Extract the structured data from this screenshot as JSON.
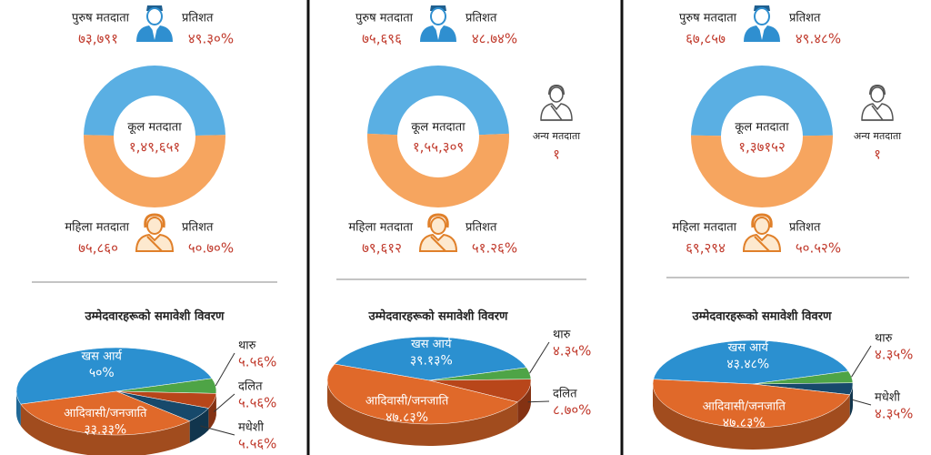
{
  "chart_data": [
    {
      "type": "donut",
      "center_label": "कूल मतदाता",
      "total": 149651,
      "total_label": "१,४९,६५१",
      "percent_heading": "प्रतिशत",
      "categories": [
        "पुरुष मतदाता",
        "महिला मतदाता"
      ],
      "values": [
        49.3,
        50.7
      ],
      "value_labels": [
        "४९.३०%",
        "५०.७०%"
      ],
      "counts": [
        73791,
        75860
      ],
      "count_labels": [
        "७३,७९१",
        "७५,८६०"
      ],
      "colors": [
        "#5aafe3",
        "#f6a55f"
      ]
    },
    {
      "type": "pie3d",
      "title": "उम्मेदवारहरूको समावेशी विवरण",
      "categories": [
        "खस आर्य",
        "थारु",
        "दलित",
        "मधेशी",
        "आदिवासी/जनजाति"
      ],
      "values": [
        50,
        5.56,
        5.56,
        5.56,
        33.33
      ],
      "value_labels": [
        "५०%",
        "५.५६%",
        "५.५६%",
        "५.५६%",
        "३३.३३%"
      ],
      "colors": [
        "#2b90d0",
        "#4ea446",
        "#b8461a",
        "#17496b",
        "#e0692a"
      ]
    },
    {
      "type": "donut",
      "center_label": "कूल मतदाता",
      "total": 155309,
      "total_label": "१,५५,३०९",
      "percent_heading": "प्रतिशत",
      "categories": [
        "पुरुष मतदाता",
        "महिला मतदाता"
      ],
      "values": [
        48.74,
        51.26
      ],
      "value_labels": [
        "४८.७४%",
        "५१.२६%"
      ],
      "counts": [
        75696,
        79612
      ],
      "count_labels": [
        "७५,६९६",
        "७९,६१२"
      ],
      "colors": [
        "#5aafe3",
        "#f6a55f"
      ],
      "other_label": "अन्य मतदाता",
      "other_count": 1,
      "other_count_label": "१"
    },
    {
      "type": "pie3d",
      "title": "उम्मेदवारहरूको समावेशी विवरण",
      "categories": [
        "खस आर्य",
        "थारु",
        "दलित",
        "आदिवासी/जनजाति"
      ],
      "values": [
        39.13,
        4.35,
        8.7,
        47.83
      ],
      "value_labels": [
        "३९.१३%",
        "४.३५%",
        "८.७०%",
        "४७.८३%"
      ],
      "colors": [
        "#2b90d0",
        "#4ea446",
        "#b8461a",
        "#e0692a"
      ]
    },
    {
      "type": "donut",
      "center_label": "कूल मतदाता",
      "total": 137152,
      "total_label": "१,३७१५२",
      "percent_heading": "प्रतिशत",
      "categories": [
        "पुरुष मतदाता",
        "महिला मतदाता"
      ],
      "values": [
        49.48,
        50.52
      ],
      "value_labels": [
        "४९.४८%",
        "५०.५२%"
      ],
      "counts": [
        67857,
        69294
      ],
      "count_labels": [
        "६७,८५७",
        "६९,२९४"
      ],
      "colors": [
        "#5aafe3",
        "#f6a55f"
      ],
      "other_label": "अन्य मतदाता",
      "other_count": 1,
      "other_count_label": "१"
    },
    {
      "type": "pie3d",
      "title": "उम्मेदवारहरूको समावेशी विवरण",
      "categories": [
        "खस आर्य",
        "थारु",
        "मधेशी",
        "आदिवासी/जनजाति"
      ],
      "values": [
        43.48,
        4.35,
        4.35,
        47.83
      ],
      "value_labels": [
        "४३.४८%",
        "४.३५%",
        "४.३५%",
        "४७.८३%"
      ],
      "colors": [
        "#2b90d0",
        "#4ea446",
        "#17496b",
        "#e0692a"
      ]
    }
  ]
}
